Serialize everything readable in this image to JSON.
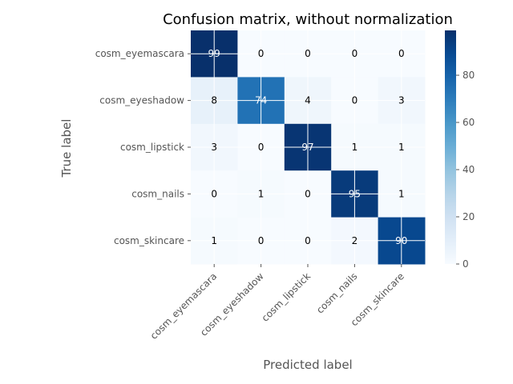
{
  "chart_data": {
    "type": "heatmap",
    "title": "Confusion matrix, without normalization",
    "xlabel": "Predicted label",
    "ylabel": "True label",
    "x_categories": [
      "cosm_eyemascara",
      "cosm_eyeshadow",
      "cosm_lipstick",
      "cosm_nails",
      "cosm_skincare"
    ],
    "y_categories": [
      "cosm_eyemascara",
      "cosm_eyeshadow",
      "cosm_lipstick",
      "cosm_nails",
      "cosm_skincare"
    ],
    "values": [
      [
        99,
        0,
        0,
        0,
        0
      ],
      [
        8,
        74,
        4,
        0,
        3
      ],
      [
        3,
        0,
        97,
        1,
        1
      ],
      [
        0,
        1,
        0,
        95,
        1
      ],
      [
        1,
        0,
        0,
        2,
        90
      ]
    ],
    "colormap": "Blues",
    "vmin": 0,
    "vmax": 99,
    "colorbar_ticks": [
      0,
      20,
      40,
      60,
      80
    ],
    "grid": true
  }
}
